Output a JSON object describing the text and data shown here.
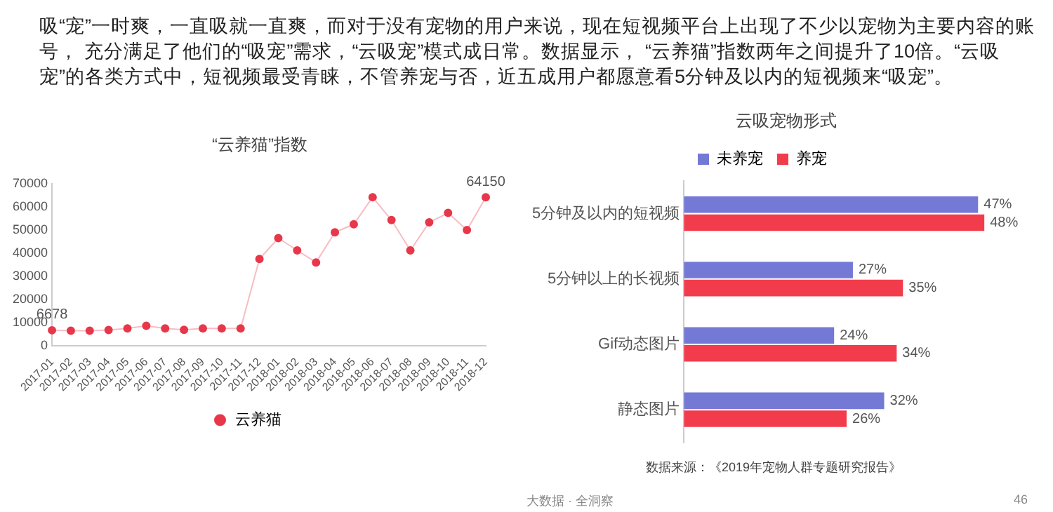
{
  "chart_data": [
    {
      "type": "line",
      "title": "“云养猫”指数",
      "categories": [
        "2017-01",
        "2017-02",
        "2017-03",
        "2017-04",
        "2017-05",
        "2017-06",
        "2017-07",
        "2017-08",
        "2017-09",
        "2017-10",
        "2017-11",
        "2017-12",
        "2018-01",
        "2018-02",
        "2018-03",
        "2018-04",
        "2018-05",
        "2018-06",
        "2018-07",
        "2018-08",
        "2018-09",
        "2018-10",
        "2018-11",
        "2018-12"
      ],
      "series": [
        {
          "name": "云养猫",
          "color": "#e8374a",
          "values": [
            6678,
            6500,
            6500,
            6800,
            7500,
            8600,
            7500,
            6900,
            7500,
            7500,
            7500,
            37500,
            46500,
            41200,
            36000,
            49000,
            52500,
            64200,
            54300,
            41200,
            53300,
            57400,
            50000,
            64150
          ],
          "value_labels": [
            "6678",
            null,
            null,
            null,
            null,
            null,
            null,
            null,
            null,
            null,
            null,
            null,
            null,
            null,
            null,
            null,
            null,
            null,
            null,
            null,
            null,
            null,
            null,
            "64150"
          ]
        }
      ],
      "ylim": [
        0,
        70000
      ],
      "yticks": [
        0,
        10000,
        20000,
        30000,
        40000,
        50000,
        60000,
        70000
      ],
      "grid": false,
      "legend": "bottom",
      "marker": "circle",
      "line_style": "solid",
      "annotations": [
        "吸“宠”一时爽，一直吸就一直爽，而对于没有宠物的用户来说，现在短视频平台上出现了不少以宠物为主要内容的账号， 充分满足了他们的“吸宠”需求，“云吸宠”模式成日常。数据显示， “云养猫”指数两年之间提升了10倍。“云吸宠”的各类方式中，短视频最受青睐，不管养宠与否，近五成用户都愿意看5分钟及以内的短视频来“吸宠”。"
      ]
    },
    {
      "type": "bar",
      "orientation": "horizontal",
      "title": "云吸宠物形式",
      "categories": [
        "5分钟及以内的短视频",
        "5分钟以上的长视频",
        "Gif动态图片",
        "静态图片"
      ],
      "series": [
        {
          "name": "未养宠",
          "color": "#7479d6",
          "values": [
            47,
            27,
            24,
            32
          ],
          "value_labels": [
            "47%",
            "27%",
            "24%",
            "32%"
          ]
        },
        {
          "name": "养宠",
          "color": "#f23c4c",
          "values": [
            48,
            35,
            34,
            26
          ],
          "value_labels": [
            "48%",
            "35%",
            "34%",
            "26%"
          ]
        }
      ],
      "tick_labels": "y",
      "grid": false,
      "legend": "top",
      "annotations": [
        "数据来源：《2019年宠物人群专题研究报告》",
        "大数据 · 全洞察",
        "46"
      ]
    }
  ]
}
